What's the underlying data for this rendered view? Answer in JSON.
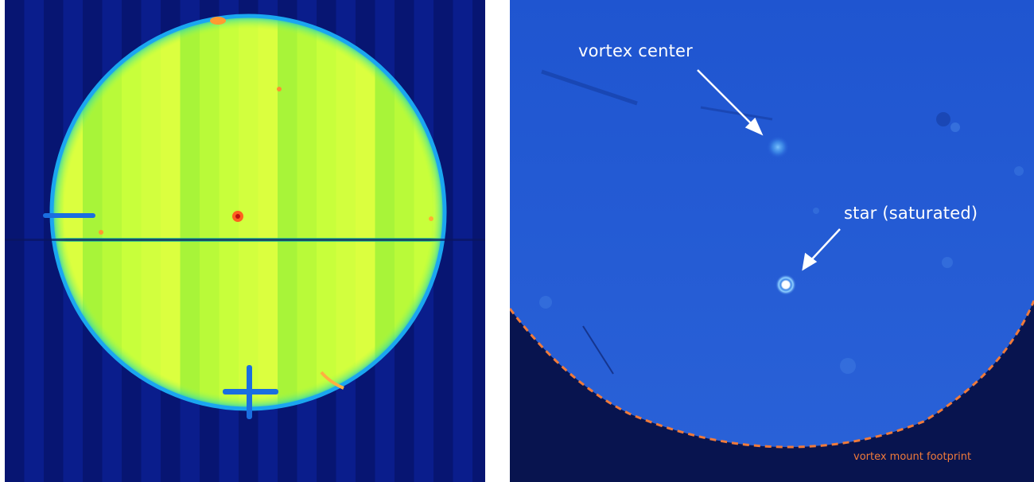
{
  "left_panel": {
    "description": ""
  },
  "right_panel": {
    "annotations": {
      "vortex_center": "vortex center",
      "star": "star (saturated)",
      "mount_footprint": "vortex mount footprint"
    }
  },
  "colors": {
    "footprint": "#f07a3a",
    "annotation_text": "#ffffff",
    "background_dark": "#08144f",
    "right_field": "#1f55cc"
  }
}
